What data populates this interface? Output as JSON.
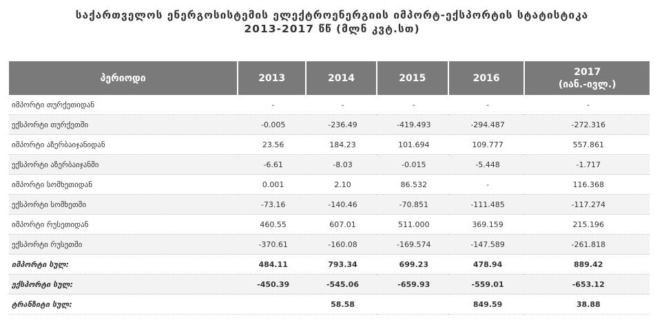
{
  "title": {
    "line1": "საქართველოს ენერგოსისტემის ელექტროენერგიის იმპორტ-ექსპორტის სტატისტიკა",
    "line2": "2013-2017 წწ (მლნ კვტ.სთ)"
  },
  "table": {
    "headers": [
      "პერიოდი",
      "2013",
      "2014",
      "2015",
      "2016",
      "2017"
    ],
    "header_2017_sub": "(იან.-ივლ.)",
    "rows": [
      [
        "იმპორტი თურქეთიდან",
        "-",
        "-",
        "-",
        "-",
        "-"
      ],
      [
        "ექსპორტი თურქეთში",
        "-0.005",
        "-236.49",
        "-419.493",
        "-294.487",
        "-272.316"
      ],
      [
        "იმპორტი აზერბაიჯანიდან",
        "23.56",
        "184.23",
        "101.694",
        "109.777",
        "557.861"
      ],
      [
        "ექსპორტი აზერბაიჯანში",
        "-6.61",
        "-8.03",
        "-0.015",
        "-5.448",
        "-1.717"
      ],
      [
        "იმპორტი სომხეთიდან",
        "0.001",
        "2.10",
        "86.532",
        "-",
        "116.368"
      ],
      [
        "ექსპორტი სომხეთში",
        "-73.16",
        "-140.46",
        "-70.851",
        "-111.485",
        "-117.274"
      ],
      [
        "იმპორტი რუსეთიდან",
        "460.55",
        "607.01",
        "511.000",
        "369.159",
        "215.196"
      ],
      [
        "ექსპორტი რუსეთში",
        "-370.61",
        "-160.08",
        "-169.574",
        "-147.589",
        "-261.818"
      ]
    ],
    "totals": [
      [
        "იმპორტი სულ:",
        "484.11",
        "793.34",
        "699.23",
        "478.94",
        "889.42"
      ],
      [
        "ექსპორტი სულ:",
        "-450.39",
        "-545.06",
        "-659.93",
        "-559.01",
        "-653.12"
      ],
      [
        "ტრანზიტი სულ:",
        "",
        "58.58",
        "",
        "849.59",
        "38.88"
      ]
    ]
  }
}
